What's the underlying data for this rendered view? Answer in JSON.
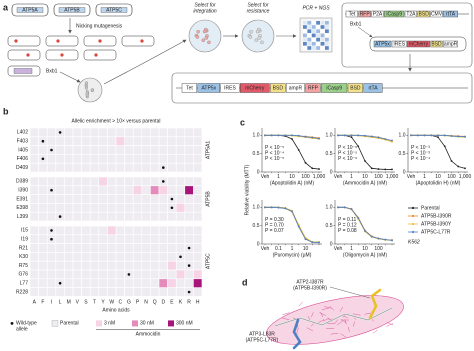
{
  "panel_labels": [
    "a",
    "b",
    "c",
    "d"
  ],
  "panel_a": {
    "genes": [
      "ATP5A",
      "ATP5B",
      "ATP5C"
    ],
    "steps": {
      "mutagenesis": "Nicking mutagenesis",
      "recombinase": "Bxb1",
      "integration": [
        "Select for",
        "integration"
      ],
      "resistance": [
        "Select for",
        "resistance"
      ],
      "sequencing": "PCR + NGS"
    },
    "landing_pad": [
      {
        "label": "Tet",
        "color": "#ffffff"
      },
      {
        "label": "RFP",
        "color": "#f4a3a3"
      },
      {
        "label": "P2A",
        "color": "#ffffff"
      },
      {
        "label": "iCasp9",
        "color": "#9bd08a"
      },
      {
        "label": "T2A",
        "color": "#ffffff"
      },
      {
        "label": "BSD",
        "color": "#f3e08a"
      },
      {
        "label": "CMV",
        "color": "#ffffff"
      },
      {
        "label": "rtTA",
        "color": "#9cc3e6"
      }
    ],
    "landing_pad_recombinase": "Bxb1",
    "donor": [
      {
        "label": "ATP5x",
        "color": "#9cc3e6"
      },
      {
        "label": "IRES",
        "color": "#ffffff"
      },
      {
        "label": "mCherry",
        "color": "#e05a6a"
      },
      {
        "label": "BSD",
        "color": "#f3e08a"
      },
      {
        "label": "ampR",
        "color": "#ffffff"
      }
    ],
    "integrated": [
      {
        "label": "Tet",
        "color": "#ffffff"
      },
      {
        "label": "ATP5x",
        "color": "#9cc3e6"
      },
      {
        "label": "IRES",
        "color": "#ffffff"
      },
      {
        "label": "mCherry",
        "color": "#e05a6a"
      },
      {
        "label": "BSD",
        "color": "#f3e08a"
      },
      {
        "label": "ampR",
        "color": "#ffffff"
      },
      {
        "label": "RFP",
        "color": "#f4a3a3"
      },
      {
        "label": "iCasp9",
        "color": "#9bd08a"
      },
      {
        "label": "BSD",
        "color": "#f3e08a"
      },
      {
        "label": "rtTA",
        "color": "#9cc3e6"
      }
    ]
  },
  "panel_c": {
    "y_label": "Relative viability (MTT)",
    "cell_line": "K562"
  },
  "chart_data": [
    {
      "type": "heatmap",
      "title": "Allelic enrichment > 10× versus parental",
      "x_label": "Amino acids",
      "columns": [
        "A",
        "F",
        "I",
        "L",
        "M",
        "V",
        "S",
        "T",
        "Y",
        "W",
        "C",
        "G",
        "P",
        "N",
        "Q",
        "D",
        "E",
        "K",
        "R",
        "H"
      ],
      "groups": [
        {
          "name": "ATP5A1",
          "rows": [
            "L402",
            "F403",
            "I405",
            "F406",
            "D409"
          ],
          "wild_type_cols": [
            3,
            1,
            2,
            1,
            15
          ]
        },
        {
          "name": "ATP5B",
          "rows": [
            "D389",
            "I390",
            "E391",
            "E398",
            "L399"
          ],
          "wild_type_cols": [
            15,
            2,
            16,
            16,
            3
          ]
        },
        {
          "name": "ATP5C",
          "rows": [
            "I15",
            "I19",
            "R21",
            "K30",
            "R75",
            "G76",
            "L77",
            "R228"
          ],
          "wild_type_cols": [
            2,
            2,
            18,
            17,
            18,
            11,
            3,
            18
          ]
        }
      ],
      "cells": [
        {
          "group": 0,
          "row": 1,
          "col": 10,
          "value": 3
        },
        {
          "group": 1,
          "row": 0,
          "col": 8,
          "value": 3
        },
        {
          "group": 1,
          "row": 1,
          "col": 12,
          "value": 3
        },
        {
          "group": 1,
          "row": 1,
          "col": 14,
          "value": 30
        },
        {
          "group": 1,
          "row": 1,
          "col": 15,
          "value": 3
        },
        {
          "group": 1,
          "row": 1,
          "col": 18,
          "value": 300
        },
        {
          "group": 1,
          "row": 3,
          "col": 17,
          "value": 3
        },
        {
          "group": 2,
          "row": 0,
          "col": 9,
          "value": 3
        },
        {
          "group": 2,
          "row": 4,
          "col": 16,
          "value": 3
        },
        {
          "group": 2,
          "row": 5,
          "col": 17,
          "value": 3
        },
        {
          "group": 2,
          "row": 5,
          "col": 19,
          "value": 3
        },
        {
          "group": 2,
          "row": 6,
          "col": 15,
          "value": 30
        },
        {
          "group": 2,
          "row": 6,
          "col": 16,
          "value": 3
        },
        {
          "group": 2,
          "row": 6,
          "col": 19,
          "value": 300
        }
      ],
      "parental_color": "#efecf1",
      "legend": {
        "wild_type": [
          "Wild-type",
          "allele"
        ],
        "parental": "Parental",
        "title": "Ammocidin"
      },
      "levels": [
        {
          "value": 3,
          "label": "3 nM",
          "color": "#f6d3e5"
        },
        {
          "value": 30,
          "label": "30 nM",
          "color": "#e48bbb"
        },
        {
          "value": 300,
          "label": "300 nM",
          "color": "#a8157a"
        }
      ]
    },
    {
      "type": "line",
      "x_label": "(Apoptolidin A) (nM)",
      "categories": [
        "Veh",
        null,
        "1",
        null,
        "10",
        null,
        "100",
        null,
        "1,000"
      ],
      "ylim": [
        0,
        1.2
      ],
      "yticks": [
        0,
        0.5,
        {
          "value": 1,
          "label": "1.0"
        }
      ],
      "series": [
        {
          "name": "Parental",
          "color": "#222222",
          "values": [
            1,
            1,
            1,
            0.98,
            0.9,
            0.6,
            0.25,
            0.1,
            0.08
          ]
        },
        {
          "name": "ATP5B-I390R",
          "color": "#e8892b",
          "values": [
            1,
            1,
            1,
            1,
            1,
            0.98,
            0.97,
            0.95,
            0.93
          ]
        },
        {
          "name": "ATP5B-I390Y",
          "color": "#e6c036",
          "values": [
            1,
            1,
            1,
            1,
            0.99,
            0.97,
            0.95,
            0.92,
            0.9
          ]
        },
        {
          "name": "ATP5C-L77R",
          "color": "#4f7fc4",
          "values": [
            1,
            1,
            1,
            1,
            1,
            0.99,
            0.96,
            0.94,
            0.91
          ]
        }
      ],
      "annotations": [
        {
          "text": "P < 10⁻⁵",
          "color": "#e8892b"
        },
        {
          "text": "P < 10⁻⁴",
          "color": "#e6c036"
        },
        {
          "text": "P < 10⁻⁵",
          "color": "#4f7fc4"
        }
      ]
    },
    {
      "type": "line",
      "x_label": "(Ammocidin A) (nM)",
      "categories": [
        "Veh",
        null,
        "1",
        null,
        "10",
        null,
        "100",
        null,
        "1,000"
      ],
      "ylim": [
        0,
        1.2
      ],
      "yticks": [
        0,
        0.5,
        {
          "value": 1,
          "label": "1.0"
        }
      ],
      "series": [
        {
          "color": "#222222",
          "values": [
            1,
            1,
            0.95,
            0.7,
            0.3,
            0.1,
            0.08,
            0.07,
            0.07
          ]
        },
        {
          "color": "#e8892b",
          "values": [
            1,
            1,
            1,
            1,
            0.98,
            0.97,
            0.95,
            0.9,
            0.85
          ]
        },
        {
          "color": "#e6c036",
          "values": [
            1,
            1,
            1,
            0.99,
            0.97,
            0.95,
            0.92,
            0.88,
            0.82
          ]
        },
        {
          "color": "#4f7fc4",
          "values": [
            1,
            1,
            1,
            1,
            0.99,
            0.97,
            0.94,
            0.9,
            0.86
          ]
        }
      ],
      "annotations": [
        {
          "text": "P < 10⁻⁶",
          "color": "#e8892b"
        },
        {
          "text": "P < 10⁻⁵",
          "color": "#e6c036"
        },
        {
          "text": "P < 10⁻⁶",
          "color": "#4f7fc4"
        }
      ]
    },
    {
      "type": "line",
      "x_label": "(Apoptolidin H) (nM)",
      "categories": [
        "Veh",
        null,
        "1",
        null,
        "10",
        null,
        "100",
        null,
        "1,000"
      ],
      "ylim": [
        0,
        1.2
      ],
      "yticks": [
        0,
        0.5,
        {
          "value": 1,
          "label": "1.0"
        }
      ],
      "series": [
        {
          "color": "#222222",
          "values": [
            1,
            1,
            1,
            1,
            0.95,
            0.7,
            0.3,
            0.15,
            0.1
          ]
        },
        {
          "color": "#e8892b",
          "values": [
            1,
            1,
            1,
            1,
            1,
            1,
            0.99,
            0.98,
            0.97
          ]
        },
        {
          "color": "#e6c036",
          "values": [
            1,
            1,
            1,
            1,
            1,
            0.99,
            0.98,
            0.96,
            0.95
          ]
        },
        {
          "color": "#4f7fc4",
          "values": [
            1,
            1,
            1,
            1,
            1,
            1,
            0.98,
            0.97,
            0.96
          ]
        }
      ],
      "annotations": [
        {
          "text": "P < 10⁻³",
          "color": "#e8892b"
        },
        {
          "text": "P < 10⁻³",
          "color": "#e6c036"
        },
        {
          "text": "P < 10⁻⁴",
          "color": "#4f7fc4"
        }
      ]
    },
    {
      "type": "line",
      "x_label": "(Puromycin) (μM)",
      "categories": [
        "Veh",
        null,
        "0.1",
        null,
        "1",
        null,
        "10",
        null,
        null
      ],
      "ylim": [
        0,
        1.2
      ],
      "yticks": [
        0,
        0.5,
        {
          "value": 1,
          "label": "1.0"
        }
      ],
      "series": [
        {
          "color": "#222222",
          "values": [
            1,
            1,
            1,
            0.98,
            0.9,
            0.5,
            0.15,
            0.05,
            0.05
          ]
        },
        {
          "color": "#e8892b",
          "values": [
            1,
            1,
            1,
            0.97,
            0.88,
            0.48,
            0.14,
            0.05,
            0.04
          ]
        },
        {
          "color": "#e6c036",
          "values": [
            1,
            1,
            1,
            0.98,
            0.91,
            0.52,
            0.17,
            0.06,
            0.05
          ]
        },
        {
          "color": "#4f7fc4",
          "values": [
            1,
            1,
            0.99,
            0.97,
            0.89,
            0.47,
            0.13,
            0.05,
            0.04
          ]
        }
      ],
      "annotations": [
        {
          "text": "P = 0.30",
          "color": "#e8892b"
        },
        {
          "text": "P = 0.70",
          "color": "#e6c036"
        },
        {
          "text": "P = 0.07",
          "color": "#4f7fc4"
        }
      ]
    },
    {
      "type": "line",
      "x_label": "(Oligomycin A) (nM)",
      "categories": [
        "Veh",
        null,
        "1",
        null,
        "10",
        null,
        "100",
        null,
        null
      ],
      "ylim": [
        0,
        1.2
      ],
      "yticks": [
        0,
        0.5,
        {
          "value": 1,
          "label": "1.0"
        }
      ],
      "series": [
        {
          "color": "#222222",
          "values": [
            1,
            1,
            0.95,
            0.7,
            0.35,
            0.2,
            0.15,
            0.12,
            0.1
          ]
        },
        {
          "color": "#e8892b",
          "values": [
            1,
            1,
            0.96,
            0.72,
            0.37,
            0.21,
            0.15,
            0.12,
            0.11
          ]
        },
        {
          "color": "#e6c036",
          "values": [
            1,
            1,
            0.94,
            0.68,
            0.34,
            0.19,
            0.14,
            0.11,
            0.1
          ]
        },
        {
          "color": "#4f7fc4",
          "values": [
            1,
            1,
            0.95,
            0.71,
            0.36,
            0.2,
            0.15,
            0.12,
            0.1
          ]
        }
      ],
      "annotations": [
        {
          "text": "P = 0.11",
          "color": "#e8892b"
        },
        {
          "text": "P = 0.12",
          "color": "#e6c036"
        },
        {
          "text": "P = 0.08",
          "color": "#4f7fc4"
        }
      ]
    }
  ],
  "panel_d": {
    "labels": [
      [
        "ATP2-I387R",
        "(ATP5B-I390R)"
      ],
      [
        "ATP3-L83R",
        "(ATP5C-L77R)"
      ]
    ]
  }
}
